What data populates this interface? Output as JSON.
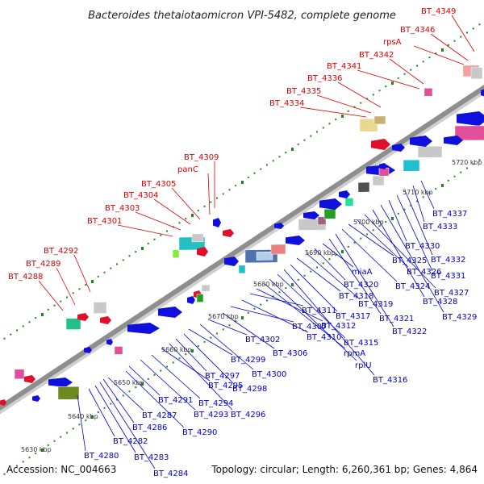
{
  "title": "Bacteroides thetaiotaomicron VPI-5482, complete genome",
  "accession": "Accession: NC_004663",
  "topology": "Topology: circular; Length: 6,260,361 bp; Genes: 4,864",
  "colors": {
    "forward_label": "#dd0000",
    "reverse_label": "#0000cc",
    "backbone": "#909090",
    "tick": "#1a8a1a"
  },
  "scale_labels": [
    "5630 kbp",
    "5640 kbp",
    "5650 kbp",
    "5660 kbp",
    "5670 kbp",
    "5680 kbp",
    "5690 kbp",
    "5700 kbp",
    "5710 kbp",
    "5720 kbp"
  ],
  "forward_genes": [
    "BT_4288",
    "BT_4289",
    "BT_4292",
    "BT_4301",
    "BT_4303",
    "BT_4304",
    "BT_4305",
    "panC",
    "BT_4309",
    "BT_4334",
    "BT_4335",
    "BT_4336",
    "BT_4341",
    "BT_4342",
    "rpsA",
    "BT_4346",
    "BT_4349"
  ],
  "reverse_genes": [
    "BT_4280",
    "BT_4282",
    "BT_4283",
    "BT_4284",
    "BT_4286",
    "BT_4287",
    "BT_4290",
    "BT_4291",
    "BT_4293",
    "BT_4294",
    "BT_4295",
    "BT_4296",
    "BT_4297",
    "BT_4298",
    "BT_4299",
    "BT_4300",
    "BT_4302",
    "BT_4306",
    "BT_4307",
    "BT_4310",
    "BT_4311",
    "BT_4312",
    "rpmA",
    "rplU",
    "BT_4315",
    "BT_4316",
    "BT_4317",
    "BT_4318",
    "BT_4319",
    "BT_4320",
    "miaA",
    "BT_4321",
    "BT_4322",
    "BT_4324",
    "BT_4325",
    "BT_4326",
    "BT_4327",
    "BT_4328",
    "BT_4329",
    "BT_4330",
    "BT_4331",
    "BT_4332",
    "BT_4333",
    "BT_4337"
  ]
}
